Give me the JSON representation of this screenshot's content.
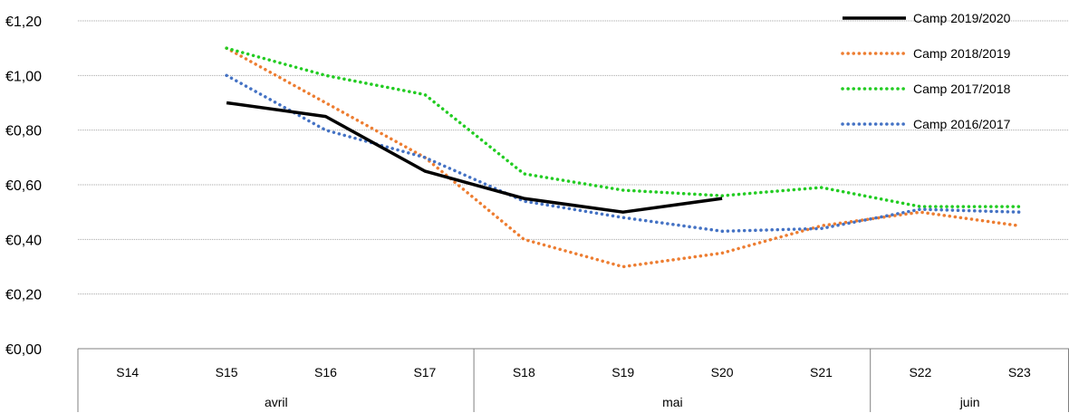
{
  "chart_data": {
    "type": "line",
    "title": "",
    "xlabel": "",
    "ylabel": "",
    "ylim": [
      0,
      1.2
    ],
    "y_ticks": [
      0,
      0.2,
      0.4,
      0.6,
      0.8,
      1.0,
      1.2
    ],
    "y_tick_labels": [
      "€0,00",
      "€0,20",
      "€0,40",
      "€0,60",
      "€0,80",
      "€1,00",
      "€1,20"
    ],
    "grid": true,
    "legend_position": "top-right",
    "categories": [
      "S14",
      "S15",
      "S16",
      "S17",
      "S18",
      "S19",
      "S20",
      "S21",
      "S22",
      "S23"
    ],
    "month_groups": [
      {
        "label": "avril",
        "start": 0,
        "end": 3
      },
      {
        "label": "mai",
        "start": 4,
        "end": 7
      },
      {
        "label": "juin",
        "start": 8,
        "end": 9
      }
    ],
    "series": [
      {
        "name": "Camp 2019/2020",
        "color": "#000000",
        "style": "solid",
        "values": [
          null,
          0.9,
          0.85,
          0.65,
          0.55,
          0.5,
          0.55,
          null,
          null,
          null
        ]
      },
      {
        "name": "Camp 2018/2019",
        "color": "#ED7D31",
        "style": "dotted",
        "values": [
          null,
          1.1,
          0.9,
          0.7,
          0.4,
          0.3,
          0.35,
          0.45,
          0.5,
          0.45
        ]
      },
      {
        "name": "Camp 2017/2018",
        "color": "#22CC22",
        "style": "dotted",
        "values": [
          null,
          1.1,
          1.0,
          0.93,
          0.64,
          0.58,
          0.56,
          0.59,
          0.52,
          0.52
        ]
      },
      {
        "name": "Camp 2016/2017",
        "color": "#4472C4",
        "style": "dotted",
        "values": [
          null,
          1.0,
          0.8,
          0.7,
          0.54,
          0.48,
          0.43,
          0.44,
          0.51,
          0.5
        ]
      }
    ]
  }
}
